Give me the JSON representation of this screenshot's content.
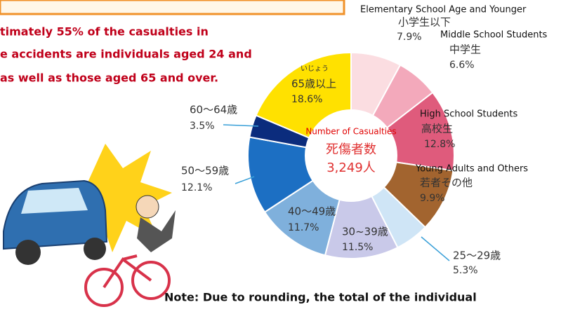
{
  "chart_data": {
    "type": "pie",
    "intro": [
      "timately 55% of the casualties in",
      "e accidents are individuals aged 24 and",
      "as well as those aged 65 and over."
    ],
    "categories": [
      "小学生以下",
      "中学生",
      "高校生",
      "若者その他",
      "25～29歳",
      "30~39歳",
      "40～49歳",
      "50～59歳",
      "60～64歳",
      "65歳以上"
    ],
    "english_labels": [
      "Elementary School Age and Younger",
      "Middle School Students",
      "High School Students",
      "Young Adults and Others",
      null,
      null,
      null,
      null,
      null,
      null
    ],
    "furigana": "いじょう",
    "values": [
      7.9,
      6.6,
      12.8,
      9.9,
      5.3,
      11.5,
      11.7,
      12.1,
      3.5,
      18.6
    ],
    "value_labels": [
      "7.9%",
      "6.6%",
      "12.8%",
      "9.9%",
      "5.3%",
      "11.5%",
      "11.7%",
      "12.1%",
      "3.5%",
      "18.6%"
    ],
    "colors": [
      "#fbdde1",
      "#f3a9bb",
      "#df5b7c",
      "#a2642f",
      "#cfe5f6",
      "#c9c9e9",
      "#7fb0dc",
      "#1c6fc3",
      "#0b2c7d",
      "#ffe100"
    ],
    "center_label": "Number of Casualties",
    "center_title": "死傷者数",
    "center_total": "3,249人",
    "note": "Note: Due to rounding, the total of the individual"
  }
}
